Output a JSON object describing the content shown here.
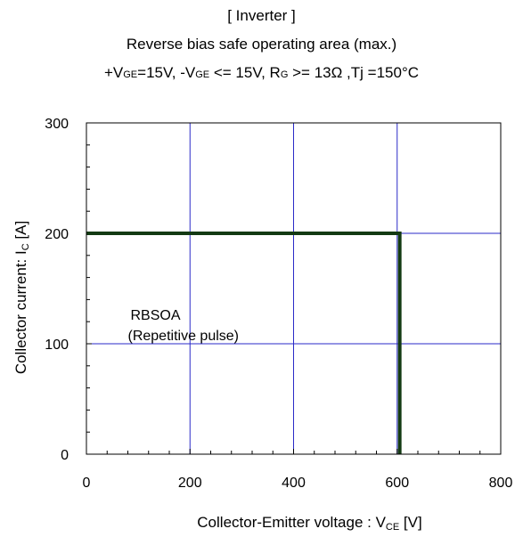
{
  "chart_data": {
    "type": "line",
    "title": "[ Inverter ]",
    "subtitle": "Reverse bias safe operating area (max.)",
    "conditions": {
      "p1": "+V",
      "s1": "GE",
      "p2": "=15V, -V",
      "s2": "GE",
      "p3": " <= 15V, R",
      "s3": "G",
      "p4": " >= 13Ω ,Tj =150°C"
    },
    "xlabel": {
      "main": "Collector-Emitter voltage : V",
      "sub": "CE",
      "unit": " [V]"
    },
    "ylabel": {
      "main": "Collector current: I",
      "sub": "C",
      "unit": " [A]"
    },
    "xlim": [
      0,
      800
    ],
    "ylim": [
      0,
      300
    ],
    "x_ticks": [
      0,
      200,
      400,
      600,
      800
    ],
    "y_ticks": [
      0,
      100,
      200,
      300
    ],
    "grid": true,
    "series": [
      {
        "x": [
          0,
          605,
          605
        ],
        "y": [
          200,
          200,
          0
        ],
        "color": "#133a13"
      }
    ],
    "annotation": {
      "lines": [
        "RBSOA",
        "(Repetitive pulse)"
      ],
      "x": 80,
      "y": 120
    },
    "grid_color": "#2a2ac8",
    "axis_color": "#000000"
  }
}
